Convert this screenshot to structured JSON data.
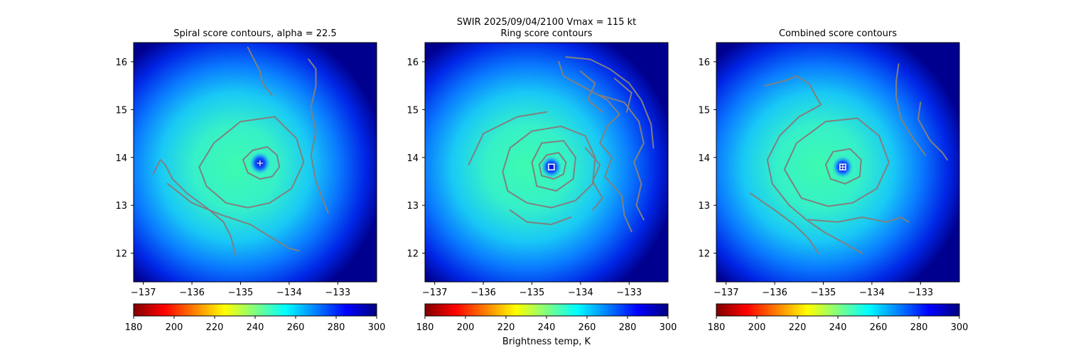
{
  "figure": {
    "suptitle": "SWIR  2025/09/04/2100    Vmax = 115 kt",
    "colorbar_label": "Brightness temp, K"
  },
  "chart_data": [
    {
      "type": "heatmap",
      "title": "Spiral score contours, alpha = 22.5",
      "xlim": [
        -137.2,
        -132.2
      ],
      "ylim": [
        11.4,
        16.4
      ],
      "xticks": [
        -137,
        -136,
        -135,
        -134,
        -133
      ],
      "yticks": [
        12,
        13,
        14,
        15,
        16
      ],
      "center_marker": {
        "x": -134.6,
        "y": 13.88,
        "shape": "plus",
        "color": "#ffffff"
      },
      "contour_color": "#808080",
      "contours": [
        {
          "points": [
            [
              -134.95,
              13.95
            ],
            [
              -134.75,
              14.15
            ],
            [
              -134.45,
              14.22
            ],
            [
              -134.25,
              14.05
            ],
            [
              -134.2,
              13.8
            ],
            [
              -134.35,
              13.6
            ],
            [
              -134.6,
              13.55
            ],
            [
              -134.85,
              13.68
            ],
            [
              -134.95,
              13.95
            ]
          ]
        },
        {
          "points": [
            [
              -135.85,
              13.8
            ],
            [
              -135.55,
              14.3
            ],
            [
              -135.0,
              14.75
            ],
            [
              -134.3,
              14.85
            ],
            [
              -133.85,
              14.4
            ],
            [
              -133.7,
              13.9
            ],
            [
              -133.95,
              13.35
            ],
            [
              -134.4,
              13.05
            ],
            [
              -134.85,
              12.95
            ],
            [
              -135.3,
              13.05
            ],
            [
              -135.7,
              13.4
            ],
            [
              -135.85,
              13.8
            ]
          ]
        },
        {
          "points": [
            [
              -134.35,
              15.3
            ],
            [
              -134.55,
              15.55
            ],
            [
              -134.6,
              15.8
            ],
            [
              -134.7,
              16.0
            ],
            [
              -134.85,
              16.3
            ]
          ]
        },
        {
          "points": [
            [
              -133.55,
              15.0
            ],
            [
              -133.45,
              14.55
            ],
            [
              -133.55,
              14.05
            ],
            [
              -133.45,
              13.5
            ],
            [
              -133.3,
              13.1
            ],
            [
              -133.2,
              12.85
            ]
          ]
        },
        {
          "points": [
            [
              -133.6,
              16.05
            ],
            [
              -133.45,
              15.85
            ],
            [
              -133.45,
              15.5
            ],
            [
              -133.55,
              15.05
            ]
          ]
        },
        {
          "points": [
            [
              -136.8,
              13.65
            ],
            [
              -136.65,
              13.95
            ],
            [
              -136.55,
              13.85
            ],
            [
              -136.4,
              13.55
            ],
            [
              -136.1,
              13.25
            ],
            [
              -135.7,
              12.95
            ],
            [
              -135.35,
              12.65
            ],
            [
              -135.2,
              12.35
            ],
            [
              -135.1,
              11.95
            ]
          ]
        },
        {
          "points": [
            [
              -136.5,
              13.45
            ],
            [
              -136.0,
              13.05
            ],
            [
              -135.4,
              12.8
            ],
            [
              -134.8,
              12.6
            ],
            [
              -134.4,
              12.35
            ],
            [
              -134.0,
              12.1
            ],
            [
              -133.8,
              12.05
            ]
          ]
        }
      ]
    },
    {
      "type": "heatmap",
      "title": "Ring score contours",
      "xlim": [
        -137.2,
        -132.2
      ],
      "ylim": [
        11.4,
        16.4
      ],
      "xticks": [
        -137,
        -136,
        -135,
        -134,
        -133
      ],
      "yticks": [
        12,
        13,
        14,
        15,
        16
      ],
      "center_marker": {
        "x": -134.6,
        "y": 13.8,
        "shape": "square",
        "color": "#ffffff"
      },
      "contour_color": "#808080",
      "contours": [
        {
          "points": [
            [
              -134.85,
              13.85
            ],
            [
              -134.7,
              14.05
            ],
            [
              -134.45,
              14.1
            ],
            [
              -134.3,
              13.9
            ],
            [
              -134.35,
              13.65
            ],
            [
              -134.55,
              13.55
            ],
            [
              -134.8,
              13.62
            ],
            [
              -134.85,
              13.85
            ]
          ]
        },
        {
          "points": [
            [
              -135.0,
              13.9
            ],
            [
              -134.8,
              14.3
            ],
            [
              -134.35,
              14.35
            ],
            [
              -134.1,
              14.0
            ],
            [
              -134.15,
              13.55
            ],
            [
              -134.5,
              13.3
            ],
            [
              -134.9,
              13.4
            ],
            [
              -135.0,
              13.9
            ]
          ]
        },
        {
          "points": [
            [
              -135.6,
              13.7
            ],
            [
              -135.45,
              14.2
            ],
            [
              -135.0,
              14.55
            ],
            [
              -134.4,
              14.65
            ],
            [
              -133.9,
              14.45
            ],
            [
              -133.7,
              14.0
            ],
            [
              -133.75,
              13.45
            ],
            [
              -134.1,
              13.1
            ],
            [
              -134.6,
              12.95
            ],
            [
              -135.1,
              13.05
            ],
            [
              -135.5,
              13.3
            ],
            [
              -135.6,
              13.7
            ]
          ]
        },
        {
          "points": [
            [
              -136.3,
              13.85
            ],
            [
              -136.0,
              14.5
            ],
            [
              -135.3,
              14.85
            ],
            [
              -134.7,
              14.95
            ]
          ]
        },
        {
          "points": [
            [
              -135.45,
              12.9
            ],
            [
              -135.1,
              12.65
            ],
            [
              -134.6,
              12.6
            ],
            [
              -134.2,
              12.75
            ]
          ]
        },
        {
          "points": [
            [
              -134.45,
              16.0
            ],
            [
              -134.35,
              15.7
            ],
            [
              -133.9,
              15.45
            ],
            [
              -133.45,
              15.2
            ],
            [
              -133.2,
              14.9
            ],
            [
              -133.45,
              14.65
            ],
            [
              -133.6,
              14.3
            ],
            [
              -133.35,
              14.0
            ],
            [
              -133.5,
              13.6
            ],
            [
              -133.15,
              13.2
            ],
            [
              -133.1,
              12.8
            ],
            [
              -132.95,
              12.45
            ]
          ]
        },
        {
          "points": [
            [
              -134.3,
              16.1
            ],
            [
              -133.8,
              16.05
            ],
            [
              -133.4,
              15.85
            ],
            [
              -133.0,
              15.55
            ],
            [
              -132.75,
              15.2
            ],
            [
              -132.55,
              14.7
            ],
            [
              -132.5,
              14.2
            ]
          ]
        },
        {
          "points": [
            [
              -133.6,
              15.3
            ],
            [
              -133.1,
              15.15
            ],
            [
              -132.8,
              14.75
            ],
            [
              -132.7,
              14.3
            ],
            [
              -132.9,
              13.9
            ],
            [
              -132.75,
              13.45
            ],
            [
              -132.85,
              13.0
            ],
            [
              -132.7,
              12.7
            ]
          ]
        },
        {
          "points": [
            [
              -134.0,
              15.8
            ],
            [
              -133.7,
              15.55
            ],
            [
              -133.85,
              15.2
            ],
            [
              -133.55,
              14.95
            ]
          ]
        },
        {
          "points": [
            [
              -133.3,
              15.65
            ],
            [
              -132.95,
              15.35
            ],
            [
              -133.05,
              14.95
            ]
          ]
        },
        {
          "points": [
            [
              -133.9,
              14.2
            ],
            [
              -133.6,
              13.85
            ],
            [
              -133.75,
              13.5
            ],
            [
              -133.55,
              13.15
            ],
            [
              -133.75,
              12.9
            ]
          ]
        }
      ]
    },
    {
      "type": "heatmap",
      "title": "Combined score contours",
      "xlim": [
        -137.2,
        -132.2
      ],
      "ylim": [
        11.4,
        16.4
      ],
      "xticks": [
        -137,
        -136,
        -135,
        -134,
        -133
      ],
      "yticks": [
        12,
        13,
        14,
        15,
        16
      ],
      "center_marker": {
        "x": -134.6,
        "y": 13.8,
        "shape": "square-plus",
        "color": "#ffffff"
      },
      "contour_color": "#808080",
      "contours": [
        {
          "points": [
            [
              -134.95,
              13.85
            ],
            [
              -134.8,
              14.12
            ],
            [
              -134.45,
              14.18
            ],
            [
              -134.22,
              13.95
            ],
            [
              -134.25,
              13.6
            ],
            [
              -134.55,
              13.45
            ],
            [
              -134.85,
              13.55
            ],
            [
              -134.95,
              13.85
            ]
          ]
        },
        {
          "points": [
            [
              -135.8,
              13.75
            ],
            [
              -135.55,
              14.3
            ],
            [
              -134.95,
              14.75
            ],
            [
              -134.3,
              14.82
            ],
            [
              -133.85,
              14.45
            ],
            [
              -133.65,
              13.9
            ],
            [
              -133.9,
              13.35
            ],
            [
              -134.4,
              13.05
            ],
            [
              -134.9,
              12.98
            ],
            [
              -135.45,
              13.15
            ],
            [
              -135.8,
              13.75
            ]
          ]
        },
        {
          "points": [
            [
              -135.05,
              15.1
            ],
            [
              -135.5,
              14.85
            ],
            [
              -135.9,
              14.45
            ],
            [
              -136.15,
              13.95
            ],
            [
              -136.05,
              13.45
            ],
            [
              -135.7,
              13.0
            ],
            [
              -135.35,
              12.7
            ],
            [
              -135.0,
              12.45
            ],
            [
              -134.55,
              12.2
            ],
            [
              -134.2,
              12.0
            ]
          ]
        },
        {
          "points": [
            [
              -136.2,
              15.5
            ],
            [
              -136.0,
              15.55
            ],
            [
              -135.8,
              15.6
            ],
            [
              -135.55,
              15.7
            ],
            [
              -135.3,
              15.55
            ],
            [
              -135.05,
              15.1
            ]
          ]
        },
        {
          "points": [
            [
              -133.45,
              15.95
            ],
            [
              -133.5,
              15.6
            ],
            [
              -133.5,
              15.25
            ],
            [
              -133.4,
              14.8
            ],
            [
              -133.15,
              14.4
            ],
            [
              -132.9,
              14.05
            ]
          ]
        },
        {
          "points": [
            [
              -133.0,
              15.15
            ],
            [
              -133.05,
              14.8
            ],
            [
              -132.8,
              14.35
            ],
            [
              -132.55,
              14.1
            ],
            [
              -132.45,
              13.95
            ]
          ]
        },
        {
          "points": [
            [
              -136.5,
              13.25
            ],
            [
              -136.0,
              12.9
            ],
            [
              -135.6,
              12.6
            ],
            [
              -135.3,
              12.3
            ],
            [
              -135.1,
              12.0
            ]
          ]
        },
        {
          "points": [
            [
              -135.3,
              12.7
            ],
            [
              -134.7,
              12.65
            ],
            [
              -134.2,
              12.75
            ],
            [
              -133.7,
              12.65
            ],
            [
              -133.4,
              12.75
            ],
            [
              -133.25,
              12.65
            ]
          ]
        }
      ]
    }
  ],
  "colorbar": {
    "cmap": "jet_r",
    "vmin": 180,
    "vmax": 300,
    "ticks": [
      "180",
      "200",
      "220",
      "240",
      "260",
      "280",
      "300"
    ],
    "stops": [
      "#800000",
      "#ff0000",
      "#ff8000",
      "#ffff00",
      "#80ff80",
      "#00ffff",
      "#0080ff",
      "#0000ff",
      "#000080"
    ]
  }
}
